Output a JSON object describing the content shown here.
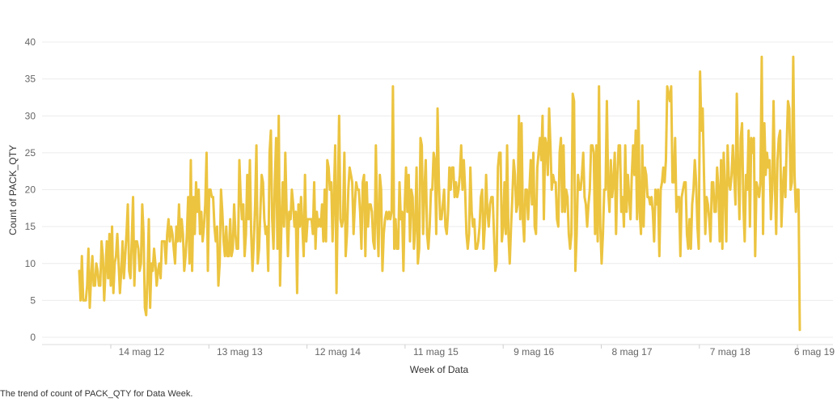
{
  "chart_data": {
    "type": "line",
    "title": "",
    "xlabel": "Week of Data",
    "ylabel": "Count of PACK_QTY",
    "ylim": [
      0,
      40
    ],
    "yticks": [
      0,
      5,
      10,
      15,
      20,
      25,
      30,
      35,
      40
    ],
    "xticks": [
      "14 mag 12",
      "13 mag 13",
      "12 mag 14",
      "11 mag 15",
      "9 mag 16",
      "8 mag 17",
      "7 mag 18",
      "6 mag 19"
    ],
    "grid": "horizontal",
    "line_color": "#ecc440",
    "series": [
      {
        "values": [
          9,
          5,
          11,
          5,
          5,
          5,
          7,
          12,
          4,
          8,
          11,
          7,
          7,
          10,
          9,
          7,
          7,
          13,
          11,
          5,
          9,
          13,
          8,
          14,
          7,
          15,
          6,
          10,
          11,
          14,
          10,
          6,
          9,
          13,
          8,
          11,
          14,
          18,
          9,
          8,
          13,
          19,
          7,
          13,
          13,
          12,
          9,
          10,
          18,
          14,
          4,
          3,
          8,
          16,
          4,
          10,
          9,
          12,
          10,
          7,
          9,
          10,
          8,
          13,
          13,
          13,
          10,
          14,
          16,
          13,
          15,
          14,
          12,
          10,
          15,
          13,
          18,
          13,
          16,
          14,
          9,
          11,
          14,
          19,
          10,
          24,
          9,
          19,
          14,
          21,
          17,
          20,
          14,
          17,
          13,
          15,
          18,
          25,
          9,
          20,
          20,
          19,
          19,
          15,
          13,
          15,
          7,
          10,
          20,
          17,
          13,
          11,
          15,
          11,
          11,
          16,
          11,
          12,
          18,
          14,
          12,
          12,
          24,
          19,
          16,
          18,
          11,
          14,
          22,
          16,
          24,
          14,
          9,
          13,
          18,
          26,
          10,
          12,
          17,
          22,
          21,
          16,
          14,
          15,
          9,
          25,
          28,
          16,
          12,
          21,
          27,
          12,
          30,
          7,
          15,
          21,
          15,
          25,
          17,
          11,
          17,
          16,
          20,
          18,
          15,
          17,
          6,
          18,
          15,
          19,
          15,
          11,
          22,
          13,
          16,
          16,
          16,
          16,
          14,
          21,
          12,
          17,
          15,
          16,
          15,
          18,
          13,
          20,
          13,
          24,
          23,
          20,
          21,
          13,
          19,
          26,
          6,
          19,
          30,
          16,
          15,
          16,
          25,
          11,
          14,
          20,
          23,
          22,
          21,
          14,
          18,
          21,
          20,
          20,
          17,
          12,
          21,
          22,
          11,
          21,
          15,
          18,
          18,
          17,
          13,
          12,
          26,
          16,
          11,
          22,
          20,
          9,
          14,
          16,
          17,
          16,
          17,
          16,
          17,
          34,
          12,
          16,
          12,
          12,
          21,
          16,
          17,
          9,
          18,
          23,
          17,
          22,
          13,
          20,
          19,
          12,
          15,
          23,
          10,
          12,
          27,
          26,
          14,
          20,
          24,
          14,
          12,
          15,
          20,
          20,
          25,
          24,
          14,
          31,
          21,
          16,
          16,
          18,
          20,
          15,
          14,
          17,
          23,
          20,
          23,
          23,
          19,
          21,
          19,
          20,
          22,
          26,
          20,
          24,
          20,
          14,
          12,
          14,
          23,
          17,
          15,
          16,
          12,
          12,
          13,
          15,
          19,
          20,
          12,
          15,
          22,
          17,
          15,
          18,
          19,
          19,
          14,
          9,
          10,
          23,
          25,
          25,
          13,
          15,
          21,
          14,
          26,
          14,
          10,
          15,
          19,
          24,
          22,
          17,
          18,
          30,
          16,
          29,
          16,
          13,
          20,
          20,
          16,
          20,
          24,
          18,
          25,
          15,
          14,
          23,
          25,
          27,
          24,
          30,
          16,
          27,
          26,
          22,
          31,
          26,
          20,
          22,
          21,
          21,
          16,
          15,
          25,
          27,
          17,
          26,
          17,
          20,
          19,
          14,
          12,
          14,
          33,
          32,
          9,
          14,
          22,
          20,
          20,
          22,
          25,
          19,
          18,
          15,
          18,
          20,
          26,
          26,
          25,
          14,
          26,
          13,
          34,
          15,
          10,
          14,
          20,
          20,
          32,
          20,
          17,
          24,
          19,
          21,
          25,
          14,
          22,
          26,
          26,
          17,
          19,
          15,
          26,
          17,
          22,
          19,
          16,
          22,
          26,
          22,
          28,
          16,
          32,
          17,
          14,
          26,
          15,
          23,
          22,
          19,
          19,
          18,
          19,
          17,
          13,
          20,
          18,
          20,
          11,
          20,
          21,
          23,
          21,
          24,
          34,
          33,
          32,
          34,
          21,
          21,
          27,
          17,
          19,
          19,
          11,
          19,
          20,
          21,
          21,
          14,
          12,
          16,
          12,
          18,
          20,
          24,
          21,
          15,
          12,
          36,
          28,
          31,
          22,
          14,
          19,
          18,
          16,
          13,
          21,
          21,
          17,
          17,
          23,
          20,
          13,
          24,
          12,
          25,
          20,
          13,
          26,
          21,
          20,
          22,
          26,
          22,
          18,
          33,
          23,
          16,
          27,
          29,
          18,
          13,
          22,
          20,
          28,
          15,
          27,
          25,
          27,
          11,
          21,
          20,
          19,
          21,
          38,
          14,
          29,
          22,
          25,
          23,
          24,
          16,
          20,
          32,
          21,
          14,
          24,
          27,
          28,
          15,
          20,
          23,
          19,
          26,
          32,
          31,
          20,
          21,
          38,
          22,
          17,
          20,
          20,
          1
        ]
      }
    ]
  },
  "caption": "The trend of count of PACK_QTY for Data Week."
}
